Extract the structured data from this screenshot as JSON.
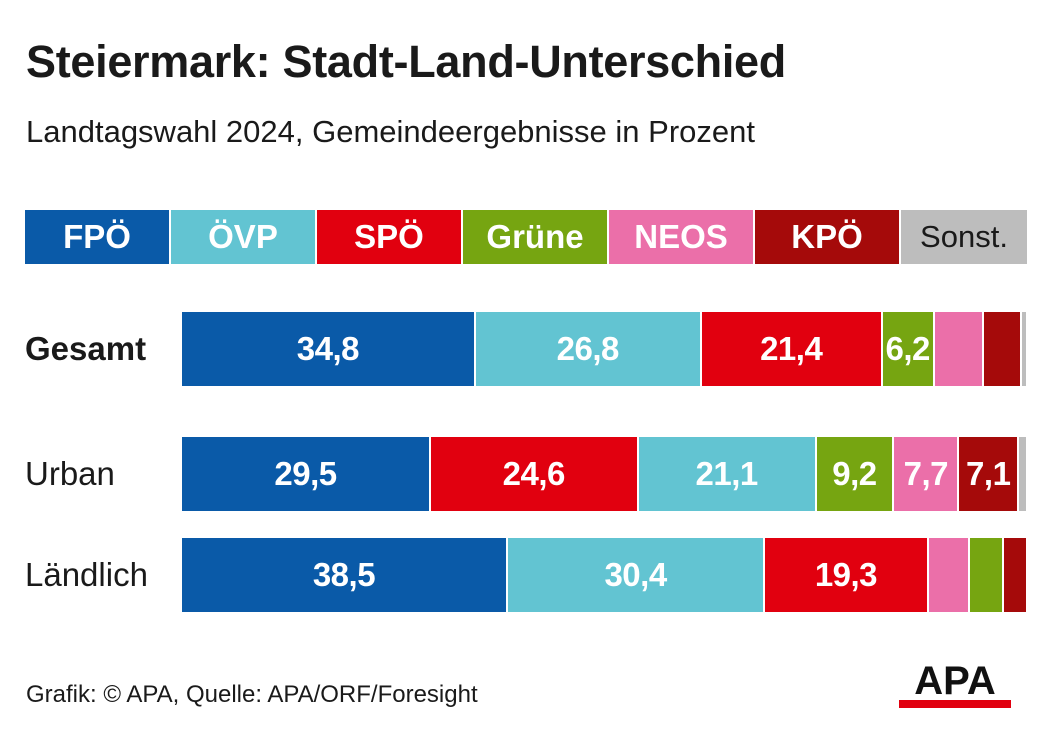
{
  "header": {
    "title": "Steiermark: Stadt-Land-Unterschied",
    "subtitle": "Landtagswahl 2024, Gemeindeergebnisse in Prozent"
  },
  "chart_data": {
    "type": "bar",
    "orientation": "horizontal-stacked",
    "title": "Steiermark: Stadt-Land-Unterschied",
    "subtitle": "Landtagswahl 2024, Gemeindeergebnisse in Prozent",
    "xlim": [
      0,
      100
    ],
    "grid": false,
    "legend_position": "top",
    "parties": [
      {
        "key": "fpo",
        "label": "FPÖ",
        "color": "#0a5aa8"
      },
      {
        "key": "ovp",
        "label": "ÖVP",
        "color": "#62c4d2"
      },
      {
        "key": "spo",
        "label": "SPÖ",
        "color": "#e1000f"
      },
      {
        "key": "grune",
        "label": "Grüne",
        "color": "#76a511"
      },
      {
        "key": "neos",
        "label": "NEOS",
        "color": "#eb6fa9"
      },
      {
        "key": "kpo",
        "label": "KPÖ",
        "color": "#a50a0a"
      },
      {
        "key": "sonst",
        "label": "Sonst.",
        "color": "#bdbdbd"
      }
    ],
    "rows": [
      {
        "label": "Gesamt",
        "bold": true,
        "segments": [
          {
            "party": "fpo",
            "value": 34.8,
            "label": "34,8"
          },
          {
            "party": "ovp",
            "value": 26.8,
            "label": "26,8"
          },
          {
            "party": "spo",
            "value": 21.4,
            "label": "21,4"
          },
          {
            "party": "grune",
            "value": 6.2,
            "label": "6,2"
          },
          {
            "party": "neos",
            "value": 5.8,
            "label": ""
          },
          {
            "party": "kpo",
            "value": 4.5,
            "label": ""
          },
          {
            "party": "sonst",
            "value": 0.5,
            "label": ""
          }
        ]
      },
      {
        "label": "Urban",
        "bold": false,
        "segments": [
          {
            "party": "fpo",
            "value": 29.5,
            "label": "29,5"
          },
          {
            "party": "spo",
            "value": 24.6,
            "label": "24,6"
          },
          {
            "party": "ovp",
            "value": 21.1,
            "label": "21,1"
          },
          {
            "party": "grune",
            "value": 9.2,
            "label": "9,2"
          },
          {
            "party": "neos",
            "value": 7.7,
            "label": "7,7"
          },
          {
            "party": "kpo",
            "value": 7.1,
            "label": "7,1"
          },
          {
            "party": "sonst",
            "value": 0.8,
            "label": ""
          }
        ]
      },
      {
        "label": "Ländlich",
        "bold": false,
        "segments": [
          {
            "party": "fpo",
            "value": 38.5,
            "label": "38,5"
          },
          {
            "party": "ovp",
            "value": 30.4,
            "label": "30,4"
          },
          {
            "party": "spo",
            "value": 19.3,
            "label": "19,3"
          },
          {
            "party": "neos",
            "value": 4.9,
            "label": ""
          },
          {
            "party": "grune",
            "value": 4.0,
            "label": ""
          },
          {
            "party": "kpo",
            "value": 2.6,
            "label": ""
          }
        ]
      }
    ]
  },
  "footer": {
    "credit": "Grafik: © APA, Quelle: APA/ORF/Foresight",
    "logo_text": "APA"
  }
}
